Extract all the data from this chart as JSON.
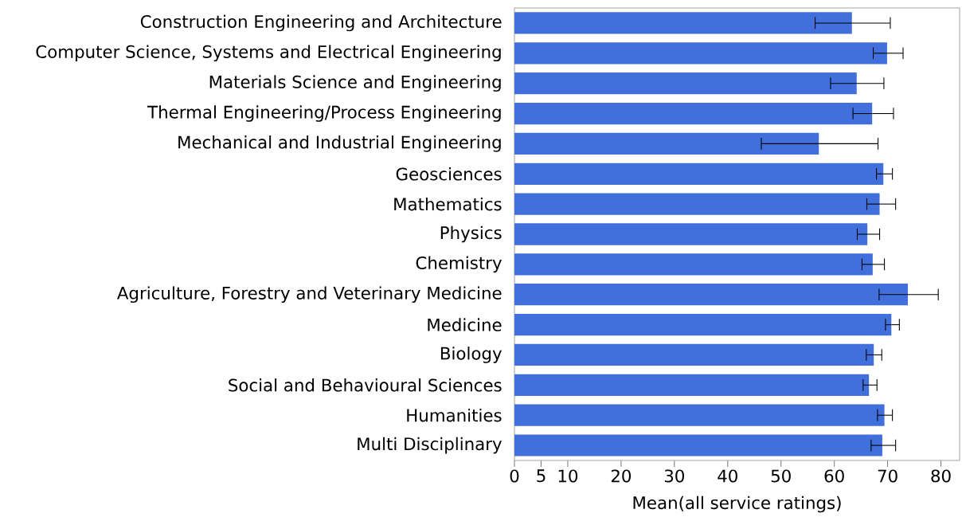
{
  "chart_data": {
    "type": "bar",
    "orientation": "horizontal",
    "categories": [
      "Construction Engineering and Architecture",
      "Computer Science, Systems and Electrical Engineering",
      "Materials Science and Engineering",
      "Thermal Engineering/Process Engineering",
      "Mechanical and Industrial Engineering",
      "Geosciences",
      "Mathematics",
      "Physics",
      "Chemistry",
      "Agriculture, Forestry and Veterinary Medicine",
      "Medicine",
      "Biology",
      "Social and Behavioural Sciences",
      "Humanities",
      "Multi Disciplinary"
    ],
    "values": [
      63.3,
      69.9,
      64.2,
      67.1,
      57.1,
      69.2,
      68.5,
      66.2,
      67.2,
      73.8,
      70.7,
      67.4,
      66.5,
      69.4,
      69.0
    ],
    "errors": [
      [
        56.4,
        70.5
      ],
      [
        67.3,
        72.9
      ],
      [
        59.3,
        69.3
      ],
      [
        63.5,
        71.1
      ],
      [
        46.3,
        68.2
      ],
      [
        67.9,
        70.9
      ],
      [
        66.1,
        71.5
      ],
      [
        64.3,
        68.5
      ],
      [
        65.2,
        69.4
      ],
      [
        68.4,
        79.5
      ],
      [
        69.6,
        72.2
      ],
      [
        66.0,
        68.9
      ],
      [
        65.4,
        68.0
      ],
      [
        68.1,
        70.9
      ],
      [
        66.9,
        71.5
      ]
    ],
    "color": "#4170dd",
    "xlim": [
      0,
      83.5
    ],
    "xticks": [
      0,
      5,
      10,
      20,
      30,
      40,
      50,
      60,
      70,
      80
    ],
    "xlabel": "Mean(all service ratings)"
  }
}
